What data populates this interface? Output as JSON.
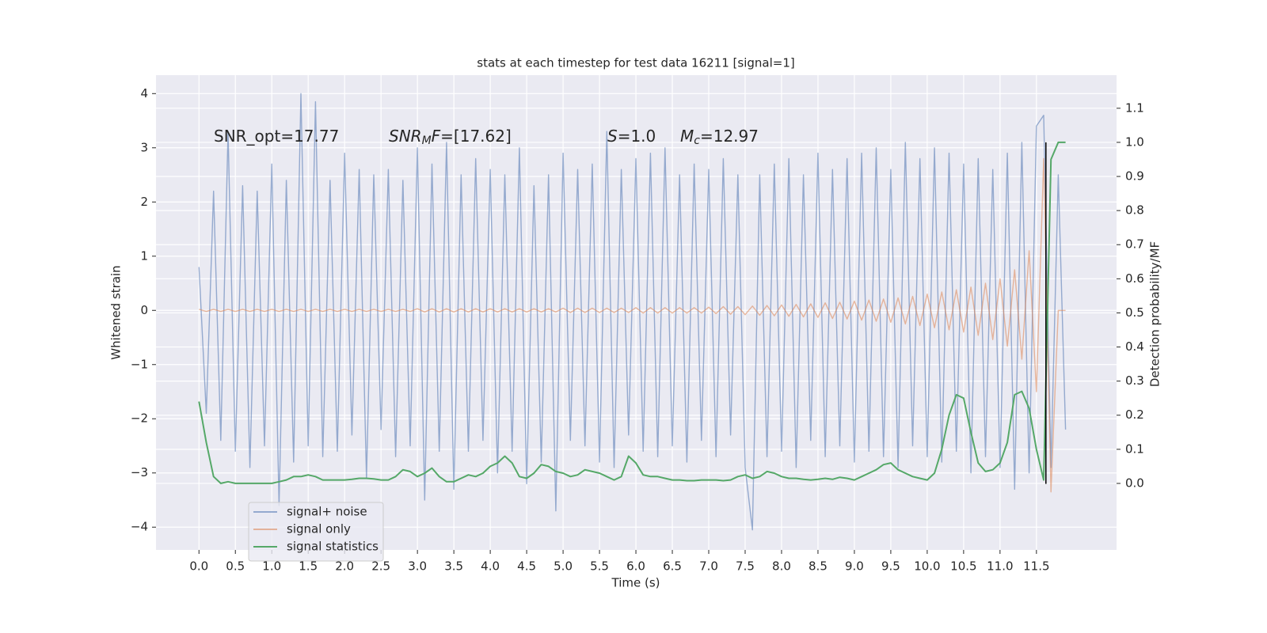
{
  "chart_data": {
    "type": "line",
    "title": "stats at each timestep for test data 16211 [signal=1]",
    "xlabel": "Time (s)",
    "ylabel": "Whitened strain",
    "y2label": "Detection probability/MF",
    "annotations": [
      [
        "SNR_opt=17.77"
      ],
      [
        "SNR",
        "M",
        "F",
        "=[17.62]"
      ],
      [
        "S",
        "=1.0"
      ],
      [
        "M",
        "c",
        "=12.97"
      ]
    ],
    "xlim": [
      -0.59,
      12.6
    ],
    "ylim": [
      -4.42,
      4.34
    ],
    "y2lim": [
      -0.195,
      1.197
    ],
    "xticks": [
      {
        "value": 0,
        "label": "0.0"
      },
      0.5,
      {
        "value": 1,
        "label": "1.0"
      },
      1.5,
      {
        "value": 2,
        "label": "2.0"
      },
      2.5,
      {
        "value": 3,
        "label": "3.0"
      },
      3.5,
      {
        "value": 4,
        "label": "4.0"
      },
      4.5,
      {
        "value": 5,
        "label": "5.0"
      },
      5.5,
      {
        "value": 6,
        "label": "6.0"
      },
      6.5,
      {
        "value": 7,
        "label": "7.0"
      },
      7.5,
      {
        "value": 8,
        "label": "8.0"
      },
      8.5,
      {
        "value": 9,
        "label": "9.0"
      },
      9.5,
      {
        "value": 10,
        "label": "10.0"
      },
      10.5,
      {
        "value": 11,
        "label": "11.0"
      },
      11.5
    ],
    "yticks": [
      {
        "value": -4,
        "label": "−4"
      },
      {
        "value": -3,
        "label": "−3"
      },
      {
        "value": -2,
        "label": "−2"
      },
      {
        "value": -1,
        "label": "−1"
      },
      0,
      1,
      2,
      3,
      4
    ],
    "y2ticks": [
      {
        "value": 0,
        "label": "0.0"
      },
      0.1,
      0.2,
      0.3,
      0.4,
      0.5,
      0.6,
      0.7,
      0.8,
      0.9,
      {
        "value": 1,
        "label": "1.0"
      },
      1.1
    ],
    "grid": true,
    "legend": "lower left",
    "x": [
      0,
      0.1,
      0.2,
      0.3,
      0.4,
      0.5,
      0.6,
      0.7,
      0.8,
      0.9,
      1,
      1.1,
      1.2,
      1.3,
      1.4,
      1.5,
      1.6,
      1.7,
      1.8,
      1.9,
      2,
      2.1,
      2.2,
      2.3,
      2.4,
      2.5,
      2.6,
      2.7,
      2.8,
      2.9,
      3,
      3.1,
      3.2,
      3.3,
      3.4,
      3.5,
      3.6,
      3.7,
      3.8,
      3.9,
      4,
      4.1,
      4.2,
      4.3,
      4.4,
      4.5,
      4.6,
      4.7,
      4.8,
      4.9,
      5,
      5.1,
      5.2,
      5.3,
      5.4,
      5.5,
      5.6,
      5.7,
      5.8,
      5.9,
      6,
      6.1,
      6.2,
      6.3,
      6.4,
      6.5,
      6.6,
      6.7,
      6.8,
      6.9,
      7,
      7.1,
      7.2,
      7.3,
      7.4,
      7.5,
      7.6,
      7.7,
      7.8,
      7.9,
      8,
      8.1,
      8.2,
      8.3,
      8.4,
      8.5,
      8.6,
      8.7,
      8.8,
      8.9,
      9,
      9.1,
      9.2,
      9.3,
      9.4,
      9.5,
      9.6,
      9.7,
      9.8,
      9.9,
      10,
      10.1,
      10.2,
      10.3,
      10.4,
      10.5,
      10.6,
      10.7,
      10.8,
      10.9,
      11,
      11.1,
      11.2,
      11.3,
      11.4,
      11.5,
      11.6,
      11.7,
      11.8,
      11.9
    ],
    "series": [
      {
        "name": "signal+ noise",
        "color": "#4c72b0",
        "axis": "y",
        "values": [
          0.8,
          -1.9,
          2.2,
          -2.4,
          3.3,
          -2.6,
          2.3,
          -2.9,
          2.2,
          -2.5,
          2.7,
          -3.6,
          2.4,
          -2.8,
          4.0,
          -2.5,
          3.85,
          -2.7,
          2.4,
          -2.6,
          2.9,
          -2.3,
          2.6,
          -3.1,
          2.5,
          -2.2,
          2.6,
          -2.7,
          2.4,
          -2.5,
          3.0,
          -3.5,
          2.7,
          -2.6,
          3.1,
          -3.3,
          2.5,
          -2.6,
          2.8,
          -2.4,
          2.6,
          -3.0,
          2.5,
          -2.6,
          3.0,
          -3.2,
          2.3,
          -2.8,
          2.5,
          -3.7,
          2.9,
          -2.4,
          2.6,
          -2.5,
          2.7,
          -2.8,
          3.3,
          -2.9,
          2.6,
          -2.3,
          2.8,
          -2.6,
          2.9,
          -2.7,
          3.0,
          -2.5,
          2.5,
          -2.8,
          2.7,
          -2.4,
          2.6,
          -2.7,
          2.8,
          -2.3,
          2.5,
          -2.9,
          -4.05,
          2.5,
          -2.7,
          2.7,
          -2.6,
          2.8,
          -2.9,
          2.5,
          -2.4,
          2.9,
          -2.7,
          2.6,
          -2.5,
          2.8,
          -2.8,
          2.9,
          -2.6,
          3.0,
          -2.7,
          2.6,
          -2.9,
          3.1,
          -2.5,
          2.8,
          -2.7,
          3.0,
          -2.8,
          2.9,
          -2.6,
          2.7,
          -3.0,
          2.8,
          -2.7,
          2.6,
          -2.9,
          2.9,
          -3.3,
          3.1,
          -3.0,
          3.4,
          3.6,
          -2.9,
          2.5,
          -2.2
        ]
      },
      {
        "name": "signal only",
        "color": "#dd8452",
        "axis": "y",
        "values": [
          0.02,
          -0.02,
          0.02,
          -0.02,
          0.02,
          -0.02,
          0.02,
          -0.02,
          0.02,
          -0.02,
          0.02,
          -0.02,
          0.02,
          -0.02,
          0.02,
          -0.02,
          0.02,
          -0.02,
          0.02,
          -0.02,
          0.02,
          -0.02,
          0.02,
          -0.02,
          0.02,
          -0.02,
          0.02,
          -0.02,
          0.02,
          -0.02,
          0.03,
          -0.03,
          0.03,
          -0.03,
          0.03,
          -0.03,
          0.03,
          -0.03,
          0.03,
          -0.03,
          0.03,
          -0.03,
          0.03,
          -0.03,
          0.03,
          -0.03,
          0.03,
          -0.03,
          0.03,
          -0.03,
          0.04,
          -0.04,
          0.04,
          -0.04,
          0.04,
          -0.04,
          0.04,
          -0.04,
          0.04,
          -0.04,
          0.05,
          -0.05,
          0.05,
          -0.05,
          0.05,
          -0.05,
          0.05,
          -0.05,
          0.05,
          -0.05,
          0.06,
          -0.06,
          0.07,
          -0.07,
          0.07,
          -0.08,
          0.08,
          -0.09,
          0.09,
          -0.1,
          0.1,
          -0.11,
          0.11,
          -0.12,
          0.12,
          -0.13,
          0.14,
          -0.15,
          0.15,
          -0.16,
          0.17,
          -0.18,
          0.19,
          -0.2,
          0.21,
          -0.22,
          0.23,
          -0.25,
          0.26,
          -0.28,
          0.3,
          -0.32,
          0.34,
          -0.36,
          0.38,
          -0.4,
          0.43,
          -0.46,
          0.5,
          -0.54,
          0.58,
          -0.66,
          0.75,
          -0.9,
          1.1,
          -1.5,
          2.8,
          -3.35,
          0,
          0
        ]
      },
      {
        "name": "signal statistics",
        "color": "#55a868",
        "axis": "y2",
        "values": [
          0.24,
          0.12,
          0.02,
          0.0,
          0.005,
          0.0,
          0.0,
          0.0,
          0.0,
          0.0,
          0.0,
          0.005,
          0.01,
          0.02,
          0.02,
          0.025,
          0.02,
          0.01,
          0.01,
          0.01,
          0.01,
          0.012,
          0.015,
          0.015,
          0.013,
          0.01,
          0.01,
          0.02,
          0.04,
          0.035,
          0.02,
          0.03,
          0.045,
          0.02,
          0.005,
          0.005,
          0.015,
          0.025,
          0.02,
          0.03,
          0.05,
          0.06,
          0.08,
          0.06,
          0.02,
          0.015,
          0.03,
          0.055,
          0.05,
          0.035,
          0.03,
          0.02,
          0.025,
          0.04,
          0.035,
          0.03,
          0.02,
          0.01,
          0.02,
          0.08,
          0.06,
          0.025,
          0.02,
          0.02,
          0.015,
          0.01,
          0.01,
          0.008,
          0.008,
          0.01,
          0.01,
          0.01,
          0.008,
          0.01,
          0.02,
          0.025,
          0.015,
          0.02,
          0.035,
          0.03,
          0.02,
          0.015,
          0.015,
          0.012,
          0.01,
          0.012,
          0.015,
          0.012,
          0.018,
          0.015,
          0.01,
          0.02,
          0.03,
          0.04,
          0.055,
          0.06,
          0.04,
          0.03,
          0.02,
          0.015,
          0.01,
          0.03,
          0.1,
          0.2,
          0.26,
          0.25,
          0.15,
          0.06,
          0.035,
          0.04,
          0.06,
          0.12,
          0.26,
          0.27,
          0.22,
          0.1,
          0.01,
          0.95,
          1.0,
          1.0
        ]
      }
    ],
    "event_line": {
      "x": 11.63,
      "ymin": -3.2,
      "ymax": 3.1,
      "color": "#000000"
    }
  }
}
